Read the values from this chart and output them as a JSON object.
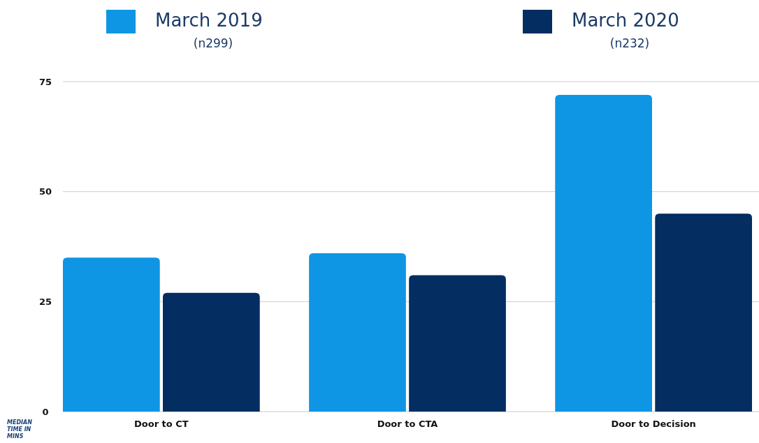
{
  "chart_data": {
    "type": "bar",
    "ylabel": "MEDIAN TIME IN MINS",
    "categories": [
      "Door to CT",
      "Door to CTA",
      "Door to Decision"
    ],
    "series": [
      {
        "name": "March 2019 (n299)",
        "color": "#0e96e4",
        "values": [
          35,
          36,
          72
        ]
      },
      {
        "name": "March 2020 (n232)",
        "color": "#042d62",
        "values": [
          27,
          31,
          45
        ]
      }
    ],
    "ylim": [
      0,
      75
    ],
    "yticks": [
      0,
      25,
      50,
      75
    ],
    "grid": "y",
    "legend": "top"
  }
}
